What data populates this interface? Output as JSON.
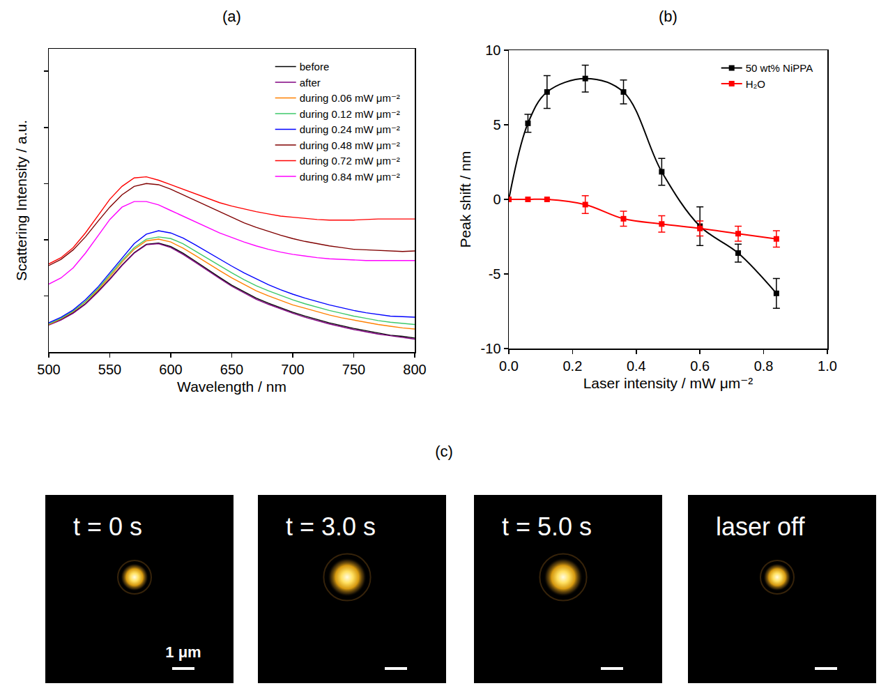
{
  "chart_data": [
    {
      "type": "line",
      "title": "(a)",
      "x_label": "Wavelength / nm",
      "y_label": "Scattering Intensity / a.u.",
      "x": [
        500,
        510,
        520,
        530,
        540,
        550,
        560,
        570,
        580,
        590,
        600,
        610,
        620,
        630,
        640,
        650,
        660,
        670,
        680,
        690,
        700,
        710,
        720,
        730,
        740,
        750,
        760,
        770,
        780,
        790,
        800
      ],
      "series": [
        {
          "name": "before",
          "color": "#000000",
          "values": [
            0.49,
            0.58,
            0.7,
            0.86,
            1.07,
            1.3,
            1.55,
            1.77,
            1.92,
            1.94,
            1.88,
            1.76,
            1.62,
            1.47,
            1.33,
            1.19,
            1.07,
            0.96,
            0.87,
            0.79,
            0.71,
            0.64,
            0.58,
            0.52,
            0.47,
            0.42,
            0.38,
            0.34,
            0.3,
            0.28,
            0.25
          ]
        },
        {
          "name": "after",
          "color": "#800080",
          "values": [
            0.48,
            0.57,
            0.69,
            0.85,
            1.06,
            1.29,
            1.54,
            1.76,
            1.91,
            1.93,
            1.86,
            1.74,
            1.6,
            1.45,
            1.31,
            1.17,
            1.05,
            0.94,
            0.85,
            0.77,
            0.69,
            0.62,
            0.56,
            0.5,
            0.45,
            0.4,
            0.36,
            0.32,
            0.29,
            0.26,
            0.23
          ]
        },
        {
          "name": "during 0.06 mW μm⁻²",
          "color": "#ff8000",
          "values": [
            0.49,
            0.59,
            0.72,
            0.89,
            1.1,
            1.34,
            1.6,
            1.83,
            1.98,
            2.01,
            1.96,
            1.85,
            1.72,
            1.58,
            1.45,
            1.32,
            1.2,
            1.09,
            1.0,
            0.92,
            0.84,
            0.78,
            0.72,
            0.66,
            0.61,
            0.57,
            0.53,
            0.49,
            0.46,
            0.43,
            0.41
          ]
        },
        {
          "name": "during 0.12 mW μm⁻²",
          "color": "#3cc86a",
          "values": [
            0.5,
            0.6,
            0.73,
            0.9,
            1.12,
            1.37,
            1.63,
            1.86,
            2.01,
            2.05,
            2.02,
            1.93,
            1.8,
            1.66,
            1.53,
            1.41,
            1.29,
            1.18,
            1.09,
            1.01,
            0.93,
            0.86,
            0.8,
            0.74,
            0.69,
            0.64,
            0.6,
            0.56,
            0.53,
            0.51,
            0.49
          ]
        },
        {
          "name": "during 0.24 mW μm⁻²",
          "color": "#0000ff",
          "values": [
            0.52,
            0.62,
            0.75,
            0.93,
            1.15,
            1.41,
            1.68,
            1.93,
            2.1,
            2.16,
            2.12,
            2.03,
            1.91,
            1.78,
            1.65,
            1.53,
            1.41,
            1.3,
            1.2,
            1.11,
            1.03,
            0.96,
            0.9,
            0.84,
            0.79,
            0.74,
            0.7,
            0.67,
            0.64,
            0.63,
            0.62
          ]
        },
        {
          "name": "during 0.48 mW μm⁻²",
          "color": "#800000",
          "values": [
            1.54,
            1.65,
            1.82,
            2.05,
            2.32,
            2.58,
            2.8,
            2.95,
            3.0,
            2.98,
            2.9,
            2.8,
            2.7,
            2.6,
            2.5,
            2.4,
            2.3,
            2.22,
            2.15,
            2.08,
            2.02,
            1.97,
            1.93,
            1.89,
            1.86,
            1.83,
            1.82,
            1.81,
            1.8,
            1.79,
            1.8
          ]
        },
        {
          "name": "during 0.72 mW μm⁻²",
          "color": "#ff0000",
          "values": [
            1.57,
            1.68,
            1.86,
            2.12,
            2.42,
            2.72,
            2.95,
            3.1,
            3.12,
            3.06,
            2.98,
            2.9,
            2.82,
            2.74,
            2.66,
            2.6,
            2.55,
            2.5,
            2.46,
            2.42,
            2.4,
            2.38,
            2.36,
            2.35,
            2.35,
            2.35,
            2.36,
            2.37,
            2.37,
            2.37,
            2.37
          ]
        },
        {
          "name": "during 0.84 mW μm⁻²",
          "color": "#ff00ff",
          "values": [
            1.21,
            1.32,
            1.5,
            1.76,
            2.06,
            2.36,
            2.58,
            2.68,
            2.68,
            2.62,
            2.52,
            2.42,
            2.32,
            2.22,
            2.12,
            2.04,
            1.96,
            1.89,
            1.83,
            1.78,
            1.74,
            1.71,
            1.68,
            1.66,
            1.65,
            1.64,
            1.63,
            1.63,
            1.63,
            1.63,
            1.63
          ]
        }
      ],
      "xlim": [
        500,
        800
      ],
      "xticks": [
        500,
        550,
        600,
        650,
        700,
        750,
        800
      ],
      "ylim": [
        0,
        5.4
      ],
      "yticks": [
        1,
        2,
        3,
        4,
        5
      ],
      "tick_labels": "x",
      "grid": false,
      "legend": "top right"
    },
    {
      "type": "scatter",
      "title": "(b)",
      "x_label": "Laser intensity / mW μm⁻²",
      "y_label": "Peak shift / nm",
      "x": [
        0,
        0.06,
        0.12,
        0.24,
        0.36,
        0.48,
        0.6,
        0.72,
        0.84
      ],
      "series": [
        {
          "name": "50 wt% NiPPA",
          "color": "#000000",
          "values": [
            0,
            5.1,
            7.2,
            8.1,
            7.2,
            1.85,
            -1.8,
            -3.6,
            -6.3
          ],
          "errors": [
            0,
            0.6,
            1.1,
            0.9,
            0.8,
            0.9,
            1.3,
            0.6,
            1.0
          ]
        },
        {
          "name": "H₂O",
          "color": "#ff0000",
          "values": [
            0,
            0,
            0,
            -0.35,
            -1.3,
            -1.65,
            -1.95,
            -2.3,
            -2.65
          ],
          "errors": [
            0,
            0,
            0,
            0.6,
            0.5,
            0.55,
            0.5,
            0.5,
            0.55
          ]
        }
      ],
      "xlim": [
        0,
        1
      ],
      "xticks": [
        {
          "value": 0,
          "label": "0.0"
        },
        {
          "value": 0.2,
          "label": "0.2"
        },
        {
          "value": 0.4,
          "label": "0.4"
        },
        {
          "value": 0.6,
          "label": "0.6"
        },
        {
          "value": 0.8,
          "label": "0.8"
        },
        {
          "value": 1,
          "label": "1.0"
        }
      ],
      "ylim": [
        -10,
        10
      ],
      "yticks": [
        -10,
        -5,
        0,
        5,
        10
      ],
      "marker": "square",
      "line_style": "smooth",
      "grid": false,
      "legend": "top right"
    }
  ],
  "image_panel": {
    "title": "(c)",
    "frames": [
      {
        "label": "t = 0 s",
        "scale_label": "1 μm"
      },
      {
        "label": "t = 3.0 s"
      },
      {
        "label": "t = 5.0 s"
      },
      {
        "label": "laser off"
      }
    ]
  }
}
